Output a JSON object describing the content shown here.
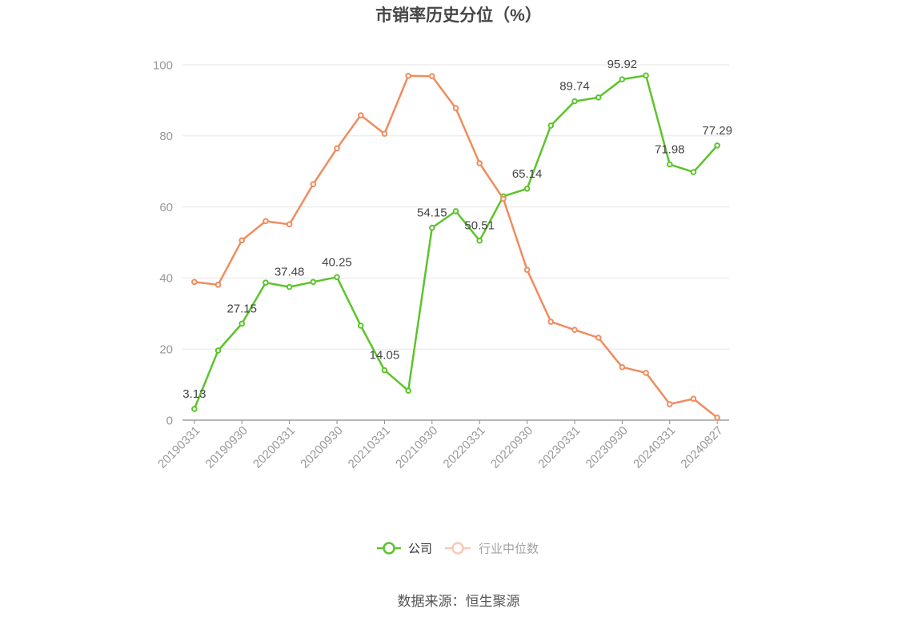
{
  "source": "数据来源：恒生聚源",
  "chart_data": {
    "type": "line",
    "title": "市销率历史分位（%）",
    "ylim": [
      0,
      100
    ],
    "yticks": [
      0,
      20,
      40,
      60,
      80,
      100
    ],
    "grid": true,
    "legend": "bottom",
    "x_tick_labels": [
      "20190331",
      "20190930",
      "20200331",
      "20200930",
      "20210331",
      "20210930",
      "20220331",
      "20220930",
      "20230331",
      "20230930",
      "20240331",
      "20240827"
    ],
    "series": [
      {
        "name": "公司",
        "color": "#5cc42b",
        "values": [
          3.13,
          19.6,
          27.15,
          38.7,
          37.48,
          38.9,
          40.25,
          26.6,
          14.05,
          8.3,
          54.15,
          58.8,
          50.51,
          63.0,
          65.14,
          82.9,
          89.74,
          90.8,
          95.92,
          97.0,
          71.98,
          69.8,
          77.29
        ],
        "data_labels": [
          "3.13",
          null,
          "27.15",
          null,
          "37.48",
          null,
          "40.25",
          null,
          "14.05",
          null,
          "54.15",
          null,
          "50.51",
          null,
          "65.14",
          null,
          "89.74",
          null,
          "95.92",
          null,
          "71.98",
          null,
          "77.29"
        ]
      },
      {
        "name": "行业中位数",
        "color": "#f08c5e",
        "values": [
          38.9,
          38.1,
          50.6,
          56.0,
          55.1,
          66.4,
          76.5,
          85.8,
          80.6,
          96.9,
          96.8,
          87.8,
          72.3,
          62.3,
          42.3,
          27.7,
          25.4,
          23.2,
          14.9,
          13.3,
          4.5,
          6.0,
          0.7
        ]
      }
    ]
  }
}
